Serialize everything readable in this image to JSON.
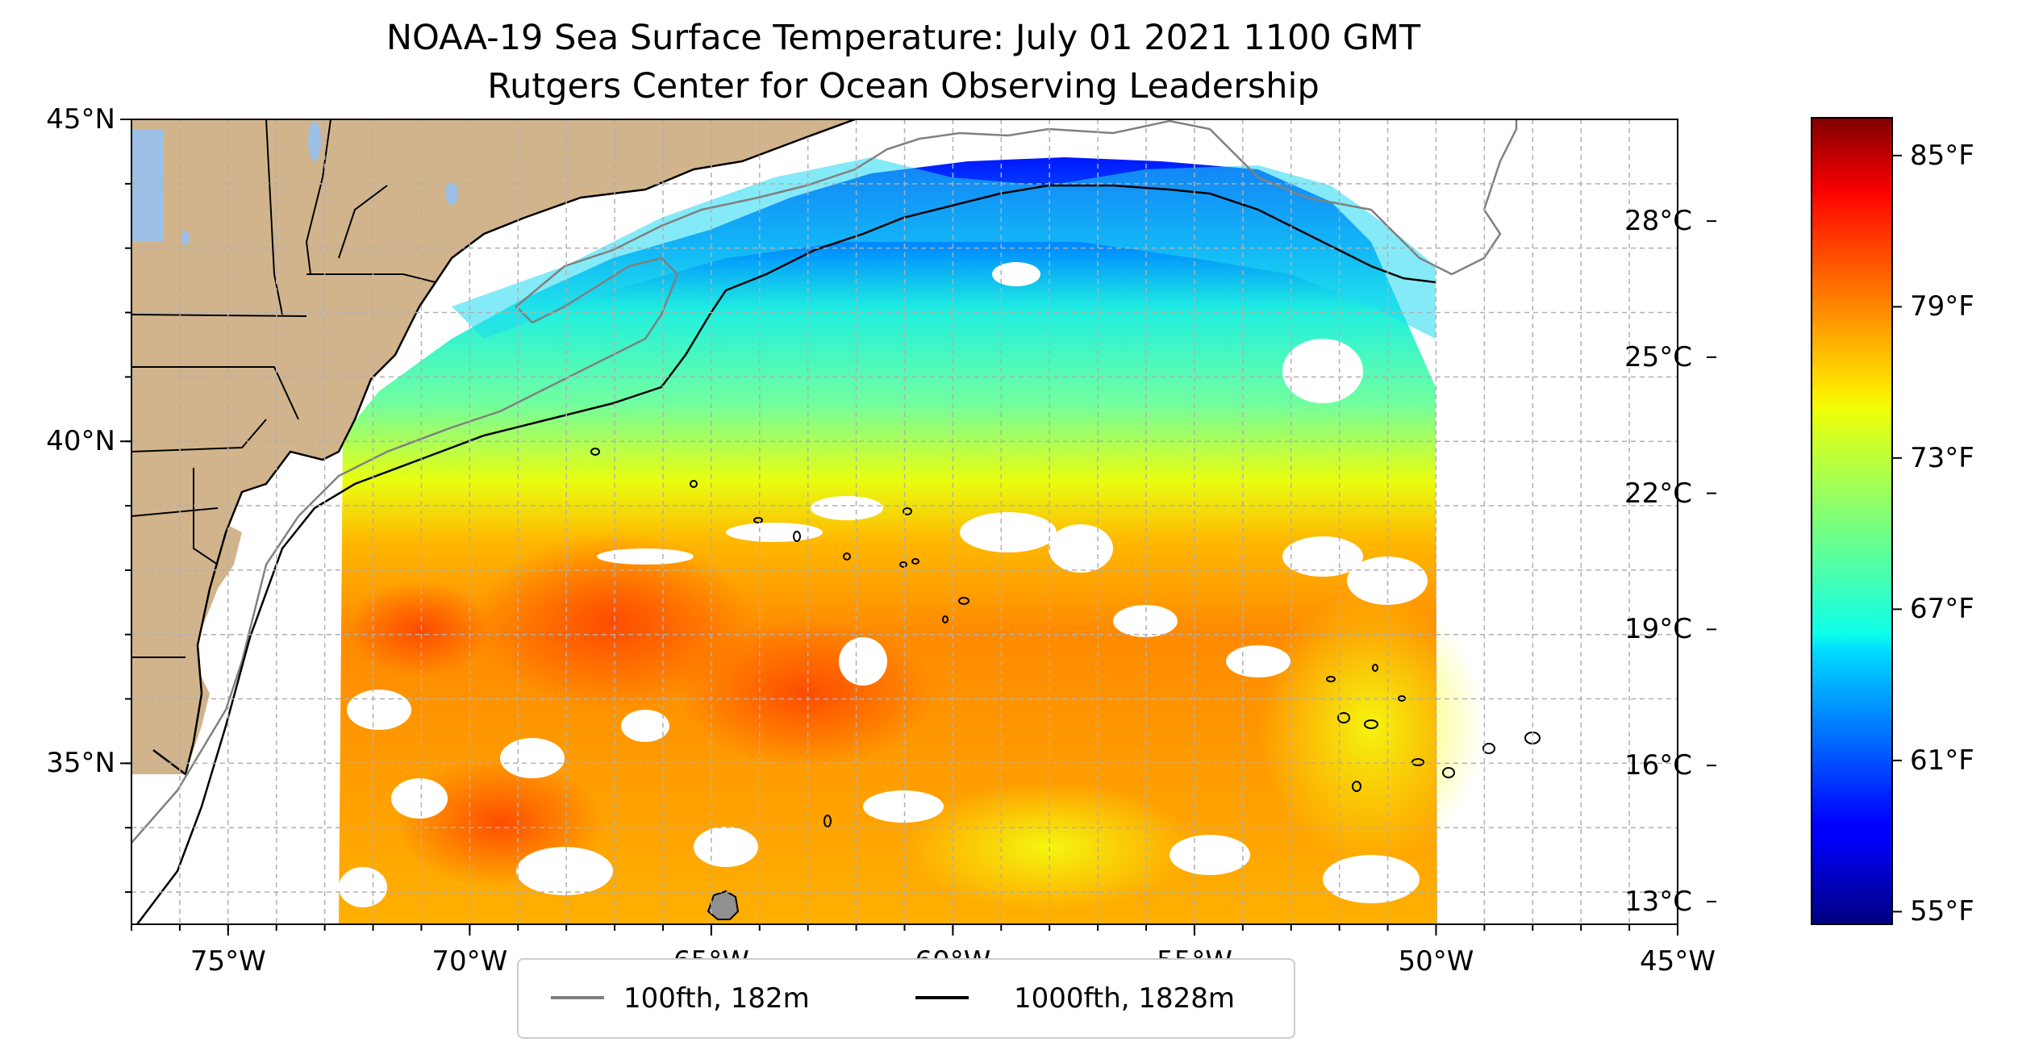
{
  "title": {
    "line1": "NOAA-19 Sea Surface Temperature: July 01 2021 1100 GMT",
    "line2": "Rutgers Center for Ocean Observing Leadership"
  },
  "map": {
    "lon_range": [
      -77,
      -45
    ],
    "lat_range": [
      32.5,
      45
    ],
    "grid": true,
    "land_color": "#d2b48c",
    "lake_color": "#9cc0e6",
    "lon_ticks": [
      {
        "value": -75,
        "label": "75°W"
      },
      {
        "value": -70,
        "label": "70°W"
      },
      {
        "value": -65,
        "label": "65°W"
      },
      {
        "value": -60,
        "label": "60°W"
      },
      {
        "value": -55,
        "label": "55°W"
      },
      {
        "value": -50,
        "label": "50°W"
      },
      {
        "value": -45,
        "label": "45°W"
      }
    ],
    "lat_ticks": [
      {
        "value": 45,
        "label": "45°N"
      },
      {
        "value": 40,
        "label": "40°N"
      },
      {
        "value": 35,
        "label": "35°N"
      }
    ]
  },
  "legend": {
    "placement": "bottom-center",
    "items": [
      {
        "label": "100fth, 182m",
        "color": "#808080"
      },
      {
        "label": "1000fth, 1828m",
        "color": "#000000"
      }
    ]
  },
  "colorbar": {
    "colormap": "jet",
    "celsius_ticks": [
      {
        "value": 13,
        "label": "13°C"
      },
      {
        "value": 16,
        "label": "16°C"
      },
      {
        "value": 19,
        "label": "19°C"
      },
      {
        "value": 22,
        "label": "22°C"
      },
      {
        "value": 25,
        "label": "25°C"
      },
      {
        "value": 28,
        "label": "28°C"
      }
    ],
    "fahrenheit_ticks": [
      {
        "value": 55,
        "label": "55°F"
      },
      {
        "value": 61,
        "label": "61°F"
      },
      {
        "value": 67,
        "label": "67°F"
      },
      {
        "value": 73,
        "label": "73°F"
      },
      {
        "value": 79,
        "label": "79°F"
      },
      {
        "value": 85,
        "label": "85°F"
      }
    ],
    "range_f": [
      54.5,
      86.5
    ]
  }
}
